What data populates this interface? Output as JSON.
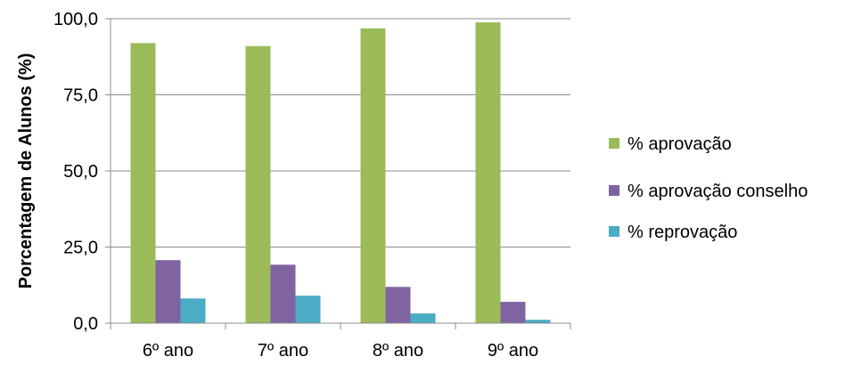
{
  "chart_data": {
    "type": "bar",
    "title": "",
    "xlabel": "",
    "ylabel": "Porcentagem de Alunos (%)",
    "categories": [
      "6º ano",
      "7º ano",
      "8º ano",
      "9º ano"
    ],
    "series": [
      {
        "name": "% aprovação",
        "color": "#9BBB59",
        "values": [
          92.0,
          91.0,
          96.8,
          98.8
        ]
      },
      {
        "name": "% aprovação conselho",
        "color": "#8064A2",
        "values": [
          20.7,
          19.2,
          11.9,
          7.0
        ]
      },
      {
        "name": "% reprovação",
        "color": "#4BACC6",
        "values": [
          8.1,
          9.0,
          3.2,
          1.1
        ]
      }
    ],
    "ylim": [
      0,
      100
    ],
    "yticks": [
      "0,0",
      "25,0",
      "50,0",
      "75,0",
      "100,0"
    ],
    "ytick_values": [
      0,
      25,
      50,
      75,
      100
    ],
    "grid": true,
    "legend_position": "right"
  }
}
